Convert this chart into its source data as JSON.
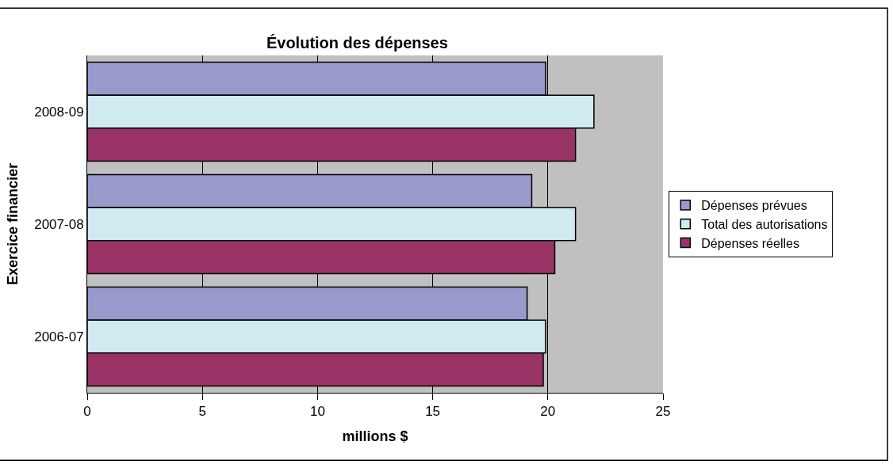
{
  "chart_data": {
    "type": "bar",
    "orientation": "horizontal",
    "title": "Évolution des dépenses",
    "xlabel": "millions $",
    "ylabel": "Exercice financier",
    "categories": [
      "2008-09",
      "2007-08",
      "2006-07"
    ],
    "series": [
      {
        "name": "Dépenses prévues",
        "color": "#9999cc",
        "values": [
          19.9,
          19.3,
          19.1
        ]
      },
      {
        "name": "Total des autorisations",
        "color": "#cfebef",
        "values": [
          22.0,
          21.2,
          19.9
        ]
      },
      {
        "name": "Dépenses réelles",
        "color": "#993366",
        "values": [
          21.2,
          20.3,
          19.8
        ]
      }
    ],
    "xlim": [
      0,
      25
    ],
    "xticks": [
      0,
      5,
      10,
      15,
      20,
      25
    ],
    "grid": "x",
    "legend": "right"
  }
}
